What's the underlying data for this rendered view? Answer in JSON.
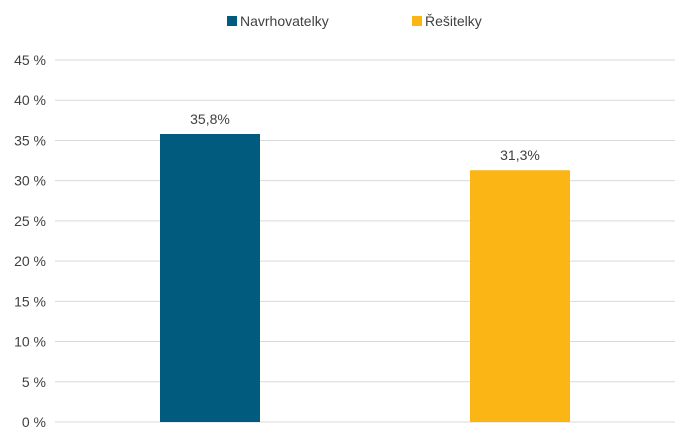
{
  "chart_data": {
    "type": "bar",
    "categories": [
      "Navrhovatelky",
      "Řešitelky"
    ],
    "series": [
      {
        "name": "Navrhovatelky",
        "values": [
          35.8,
          null
        ],
        "labels": [
          "35,8%",
          null
        ],
        "color": "#005b7f"
      },
      {
        "name": "Řešitelky",
        "values": [
          null,
          31.3
        ],
        "labels": [
          null,
          "31,3%"
        ],
        "color": "#fbb616"
      }
    ],
    "ylim": [
      0,
      45
    ],
    "yticks": [
      0,
      5,
      10,
      15,
      20,
      25,
      30,
      35,
      40,
      45
    ],
    "ytick_labels": [
      "0 %",
      "5 %",
      "10 %",
      "15 %",
      "20 %",
      "25 %",
      "30 %",
      "35 %",
      "40 %",
      "45 %"
    ],
    "grid": true,
    "legend_position": "top"
  }
}
